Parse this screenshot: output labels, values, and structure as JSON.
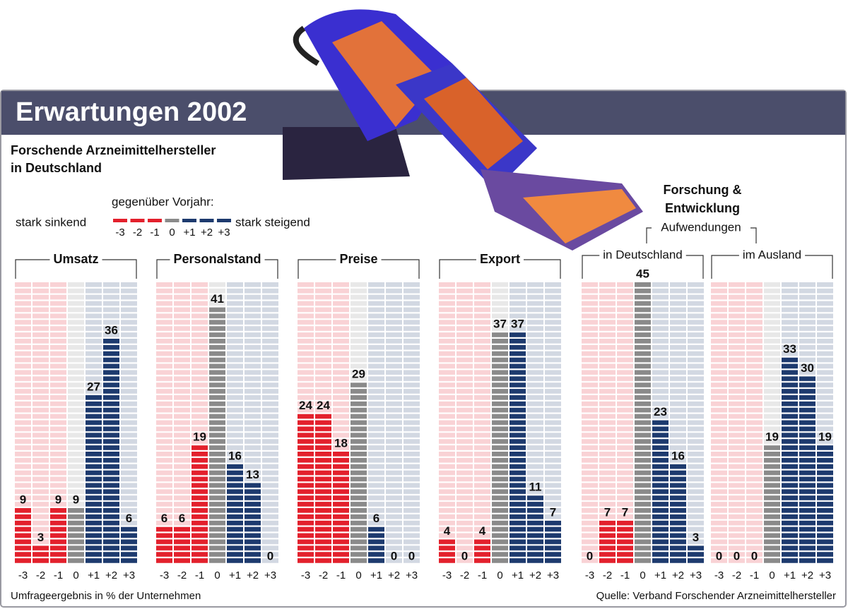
{
  "title": "Erwartungen 2002",
  "subtitle": [
    "Forschende Arzneimittelhersteller",
    "in Deutschland"
  ],
  "legend": {
    "title": "gegenüber Vorjahr:",
    "low": "stark sinkend",
    "high": "stark steigend"
  },
  "group_title": [
    "Forschung &",
    "Entwicklung"
  ],
  "group_subtitle": "Aufwendungen",
  "note": "Umfrageergebnis in % der Unternehmen",
  "source": "Quelle: Verband Forschender Arzneimittelhersteller",
  "chart_data": [
    {
      "type": "bar",
      "title": "Umsatz",
      "categories": [
        "-3",
        "-2",
        "-1",
        "0",
        "+1",
        "+2",
        "+3"
      ],
      "values": [
        9,
        3,
        9,
        9,
        27,
        36,
        6
      ],
      "colors": [
        "#e3202c",
        "#e3202c",
        "#e3202c",
        "#8a8a8a",
        "#1d3a6e",
        "#1d3a6e",
        "#1d3a6e"
      ],
      "ylim": [
        0,
        45
      ]
    },
    {
      "type": "bar",
      "title": "Personalstand",
      "categories": [
        "-3",
        "-2",
        "-1",
        "0",
        "+1",
        "+2",
        "+3"
      ],
      "values": [
        6,
        6,
        19,
        41,
        16,
        13,
        0
      ],
      "colors": [
        "#e3202c",
        "#e3202c",
        "#e3202c",
        "#8a8a8a",
        "#1d3a6e",
        "#1d3a6e",
        "#1d3a6e"
      ],
      "ylim": [
        0,
        45
      ]
    },
    {
      "type": "bar",
      "title": "Preise",
      "categories": [
        "-3",
        "-2",
        "-1",
        "0",
        "+1",
        "+2",
        "+3"
      ],
      "values": [
        24,
        24,
        18,
        29,
        6,
        0,
        0
      ],
      "colors": [
        "#e3202c",
        "#e3202c",
        "#e3202c",
        "#8a8a8a",
        "#1d3a6e",
        "#1d3a6e",
        "#1d3a6e"
      ],
      "ylim": [
        0,
        45
      ]
    },
    {
      "type": "bar",
      "title": "Export",
      "categories": [
        "-3",
        "-2",
        "-1",
        "0",
        "+1",
        "+2",
        "+3"
      ],
      "values": [
        4,
        0,
        4,
        37,
        37,
        11,
        7
      ],
      "colors": [
        "#e3202c",
        "#e3202c",
        "#e3202c",
        "#8a8a8a",
        "#1d3a6e",
        "#1d3a6e",
        "#1d3a6e"
      ],
      "ylim": [
        0,
        45
      ]
    },
    {
      "type": "bar",
      "title": "in Deutschland",
      "categories": [
        "-3",
        "-2",
        "-1",
        "0",
        "+1",
        "+2",
        "+3"
      ],
      "values": [
        0,
        7,
        7,
        45,
        23,
        16,
        3
      ],
      "colors": [
        "#e3202c",
        "#e3202c",
        "#e3202c",
        "#8a8a8a",
        "#1d3a6e",
        "#1d3a6e",
        "#1d3a6e"
      ],
      "ylim": [
        0,
        45
      ]
    },
    {
      "type": "bar",
      "title": "im Ausland",
      "categories": [
        "-3",
        "-2",
        "-1",
        "0",
        "+1",
        "+2",
        "+3"
      ],
      "values": [
        0,
        0,
        0,
        19,
        33,
        30,
        19
      ],
      "colors": [
        "#e3202c",
        "#e3202c",
        "#e3202c",
        "#8a8a8a",
        "#1d3a6e",
        "#1d3a6e",
        "#1d3a6e"
      ],
      "ylim": [
        0,
        45
      ]
    }
  ]
}
